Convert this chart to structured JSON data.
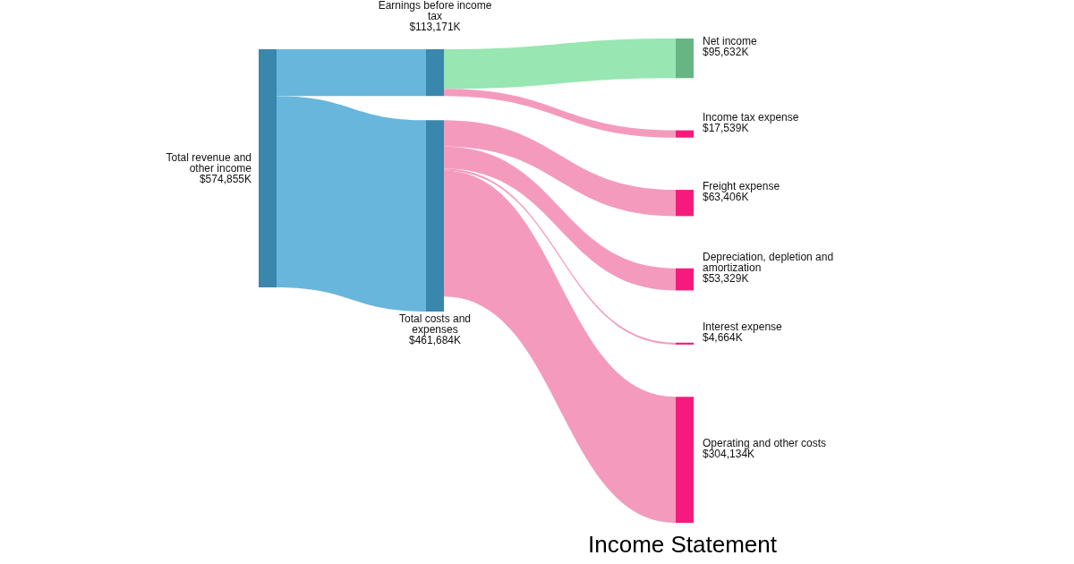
{
  "chart_data": {
    "type": "other",
    "title": "Income Statement",
    "categories": [
      "Total revenue and other income",
      "Earnings before income tax",
      "Total costs and expenses",
      "Net income",
      "Income tax expense",
      "Freight expense",
      "Depreciation, depletion and amortization",
      "Interest expense",
      "Operating and other costs"
    ],
    "values": [
      574855,
      null,
      null,
      null,
      null,
      null,
      null,
      null,
      null
    ],
    "value_labels": [
      "$574,855K",
      null,
      null,
      null,
      null,
      null,
      null,
      null,
      null
    ],
    "colors": [
      "#3987ad",
      "#3987ad",
      "#3987ad",
      "#68b584",
      "#f51b7d",
      "#f51b7d",
      "#f51b7d",
      "#f51b7d",
      "#f51b7d"
    ],
    "series": [
      {
        "values": [
          null,
          113171,
          461684,
          null,
          null,
          null,
          null,
          null,
          null
        ],
        "value_labels": [
          null,
          "$113,171K",
          "$461,684K",
          null,
          null,
          null,
          null,
          null,
          null
        ],
        "colors": [
          null,
          "#69b6dc",
          "#69b6dc",
          null,
          null,
          null,
          null,
          null,
          null
        ]
      },
      {
        "values": [
          null,
          null,
          null,
          95632,
          17539,
          null,
          null,
          null,
          null
        ],
        "value_labels": [
          null,
          null,
          null,
          "$95,632K",
          "$17,539K",
          null,
          null,
          null,
          null
        ],
        "colors": [
          null,
          null,
          null,
          "#98e6b2",
          "#f49bbd",
          null,
          null,
          null,
          null
        ]
      },
      {
        "values": [
          null,
          null,
          null,
          null,
          null,
          63406,
          53329,
          4664,
          304134
        ],
        "value_labels": [
          null,
          null,
          null,
          null,
          null,
          "$63,406K",
          "$53,329K",
          "$4,664K",
          "$304,134K"
        ],
        "colors": [
          null,
          null,
          null,
          null,
          null,
          "#f49bbd",
          "#f49bbd",
          "#f49bbd",
          "#f49bbd"
        ]
      }
    ]
  }
}
